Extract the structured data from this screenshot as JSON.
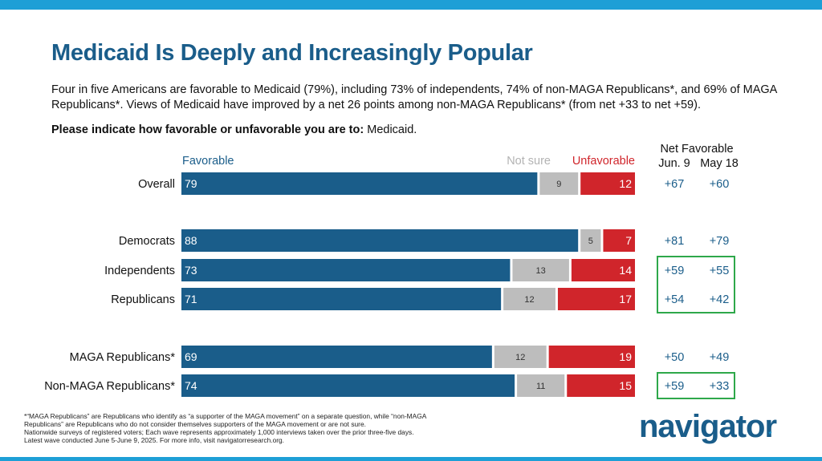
{
  "header": {
    "title": "Medicaid Is Deeply and Increasingly Popular",
    "subtitle": "Four in five Americans are favorable to Medicaid (79%), including 73% of independents, 74% of non-MAGA Republicans*, and 69% of MAGA Republicans*. Views of Medicaid have improved by a net 26 points among non-MAGA Republicans* (from net +33 to net +59).",
    "question_bold": "Please indicate how favorable or unfavorable you are to:",
    "question_rest": "Medicaid."
  },
  "chart_data": {
    "type": "bar",
    "stacked": true,
    "orientation": "horizontal",
    "legend": [
      "Favorable",
      "Not sure",
      "Unfavorable"
    ],
    "categories": [
      "Overall",
      "Democrats",
      "Independents",
      "Republicans",
      "MAGA Republicans*",
      "Non-MAGA Republicans*"
    ],
    "series": [
      {
        "name": "Favorable",
        "values": [
          79,
          88,
          73,
          71,
          69,
          74
        ]
      },
      {
        "name": "Not sure",
        "values": [
          9,
          5,
          13,
          12,
          12,
          11
        ]
      },
      {
        "name": "Unfavorable",
        "values": [
          12,
          7,
          14,
          17,
          19,
          15
        ]
      }
    ],
    "net_favorable": {
      "header": "Net Favorable",
      "columns": [
        "Jun. 9",
        "May 18"
      ],
      "rows": [
        [
          "+67",
          "+60"
        ],
        [
          "+81",
          "+79"
        ],
        [
          "+59",
          "+55"
        ],
        [
          "+54",
          "+42"
        ],
        [
          "+50",
          "+49"
        ],
        [
          "+59",
          "+33"
        ]
      ]
    },
    "colors": {
      "Favorable": "#1a5d8a",
      "Not sure": "#bdbdbd",
      "Unfavorable": "#d0252b",
      "highlight": "#2ea84a"
    },
    "xlim": [
      0,
      100
    ]
  },
  "footnote": {
    "lines": [
      "*“MAGA Republicans” are Republicans who identify as “a supporter of the MAGA movement” on a separate question, while “non-MAGA",
      "Republicans” are Republicans who do not consider themselves supporters of the MAGA movement or are not sure.",
      "Nationwide surveys of registered voters; Each wave represents approximately 1,000 interviews taken over the prior three-five days.",
      "Latest wave conducted June 5-June 9, 2025. For more info, visit navigatorresearch.org."
    ]
  },
  "logo": {
    "text": "navigator",
    "mark": "*"
  }
}
